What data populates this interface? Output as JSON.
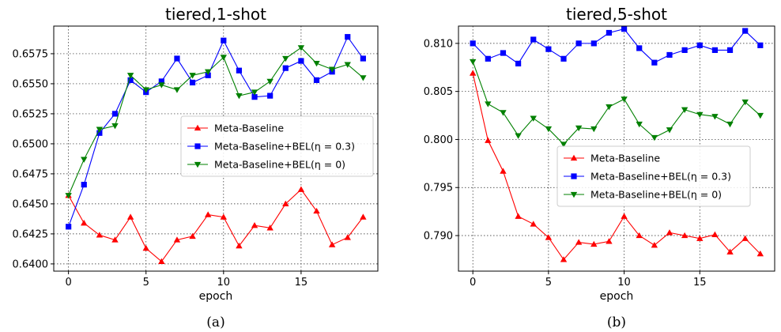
{
  "chart_data": [
    {
      "type": "line",
      "title": "tiered,1-shot",
      "xlabel": "epoch",
      "ylabel": "",
      "caption": "(a)",
      "xlim": [
        -0.95,
        19.95
      ],
      "ylim": [
        0.6394,
        0.6598
      ],
      "xticks": [
        0,
        5,
        10,
        15
      ],
      "yticks": [
        0.64,
        0.6425,
        0.645,
        0.6475,
        0.65,
        0.6525,
        0.655,
        0.6575
      ],
      "ytick_labels": [
        "0.6400",
        "0.6425",
        "0.6450",
        "0.6475",
        "0.6500",
        "0.6525",
        "0.6550",
        "0.6575"
      ],
      "grid": true,
      "legend_position": "center-right",
      "x": [
        0,
        1,
        2,
        3,
        4,
        5,
        6,
        7,
        8,
        9,
        10,
        11,
        12,
        13,
        14,
        15,
        16,
        17,
        18,
        19
      ],
      "series": [
        {
          "name": "Meta-Baseline",
          "color": "#ff0000",
          "marker": "triangle-up",
          "values": [
            0.6457,
            0.6434,
            0.6424,
            0.642,
            0.6439,
            0.6413,
            0.6402,
            0.642,
            0.6423,
            0.6441,
            0.6439,
            0.6415,
            0.6432,
            0.643,
            0.645,
            0.6462,
            0.6444,
            0.6416,
            0.6422,
            0.6439
          ]
        },
        {
          "name": "Meta-Baseline+BEL(η = 0.3)",
          "color": "#0000ff",
          "marker": "square",
          "values": [
            0.6431,
            0.6466,
            0.6509,
            0.6525,
            0.6553,
            0.6543,
            0.6552,
            0.6571,
            0.6551,
            0.6557,
            0.6586,
            0.6561,
            0.6539,
            0.654,
            0.6563,
            0.6569,
            0.6553,
            0.656,
            0.6589,
            0.6571
          ]
        },
        {
          "name": "Meta-Baseline+BEL(η = 0)",
          "color": "#008000",
          "marker": "triangle-down",
          "values": [
            0.6457,
            0.6487,
            0.6512,
            0.6515,
            0.6557,
            0.6545,
            0.6549,
            0.6545,
            0.6557,
            0.656,
            0.6572,
            0.654,
            0.6543,
            0.6552,
            0.6571,
            0.658,
            0.6567,
            0.6562,
            0.6566,
            0.6555
          ]
        }
      ]
    },
    {
      "type": "line",
      "title": "tiered,5-shot",
      "xlabel": "epoch",
      "ylabel": "",
      "caption": "(b)",
      "xlim": [
        -0.95,
        19.95
      ],
      "ylim": [
        0.7863,
        0.8118
      ],
      "xticks": [
        0,
        5,
        10,
        15
      ],
      "yticks": [
        0.79,
        0.795,
        0.8,
        0.805,
        0.81
      ],
      "ytick_labels": [
        "0.790",
        "0.795",
        "0.800",
        "0.805",
        "0.810"
      ],
      "grid": true,
      "legend_position": "center-right",
      "x": [
        0,
        1,
        2,
        3,
        4,
        5,
        6,
        7,
        8,
        9,
        10,
        11,
        12,
        13,
        14,
        15,
        16,
        17,
        18,
        19
      ],
      "series": [
        {
          "name": "Meta-Baseline",
          "color": "#ff0000",
          "marker": "triangle-up",
          "values": [
            0.8069,
            0.7999,
            0.7967,
            0.792,
            0.7912,
            0.7898,
            0.7875,
            0.7893,
            0.7891,
            0.7894,
            0.792,
            0.79,
            0.789,
            0.7903,
            0.79,
            0.7897,
            0.7901,
            0.7883,
            0.7897,
            0.7881
          ]
        },
        {
          "name": "Meta-Baseline+BEL(η = 0.3)",
          "color": "#0000ff",
          "marker": "square",
          "values": [
            0.81,
            0.8084,
            0.809,
            0.8079,
            0.8104,
            0.8094,
            0.8084,
            0.81,
            0.81,
            0.8111,
            0.8115,
            0.8095,
            0.808,
            0.8088,
            0.8093,
            0.8098,
            0.8093,
            0.8093,
            0.8113,
            0.8098
          ]
        },
        {
          "name": "Meta-Baseline+BEL(η = 0)",
          "color": "#008000",
          "marker": "triangle-down",
          "values": [
            0.8081,
            0.8037,
            0.8028,
            0.8004,
            0.8022,
            0.8011,
            0.7995,
            0.8012,
            0.8011,
            0.8034,
            0.8042,
            0.8016,
            0.8002,
            0.801,
            0.8031,
            0.8026,
            0.8024,
            0.8016,
            0.8039,
            0.8025
          ]
        }
      ]
    }
  ]
}
